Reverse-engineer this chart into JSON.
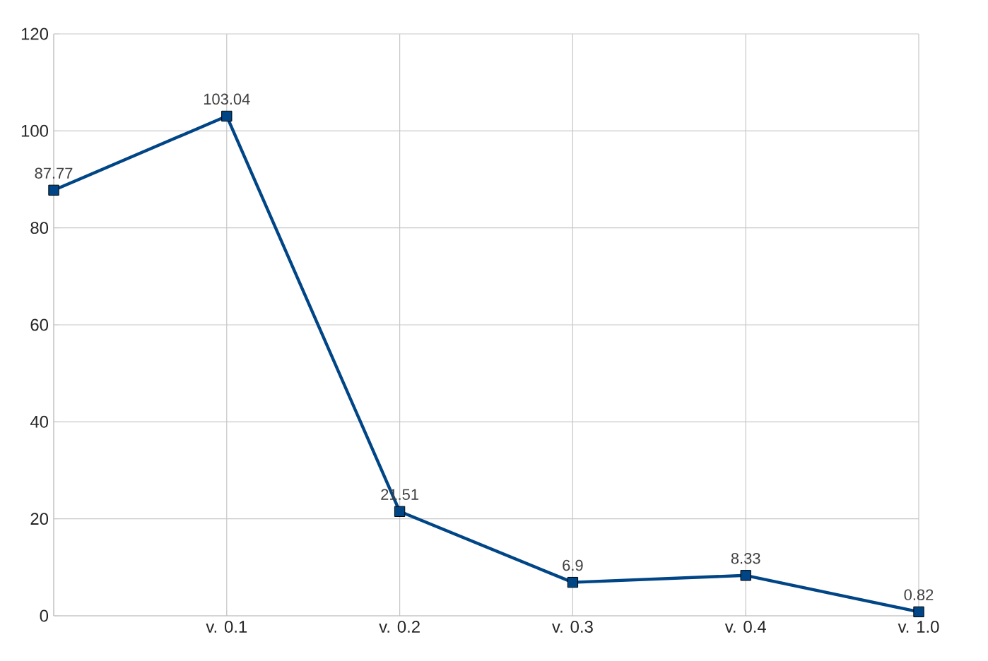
{
  "chart_data": {
    "type": "line",
    "categories": [
      null,
      "v. 0.1",
      "v. 0.2",
      "v. 0.3",
      "v. 0.4",
      "v. 1.0"
    ],
    "series": [
      {
        "color": "#004586",
        "values": [
          87.77,
          103.04,
          21.51,
          6.9,
          8.33,
          0.82
        ]
      }
    ],
    "ylim": [
      0,
      120
    ],
    "yticks": [
      0,
      20,
      40,
      60,
      80,
      100,
      120
    ],
    "grid": true,
    "marker": "square",
    "line_style": "solid",
    "data_labels": true
  }
}
